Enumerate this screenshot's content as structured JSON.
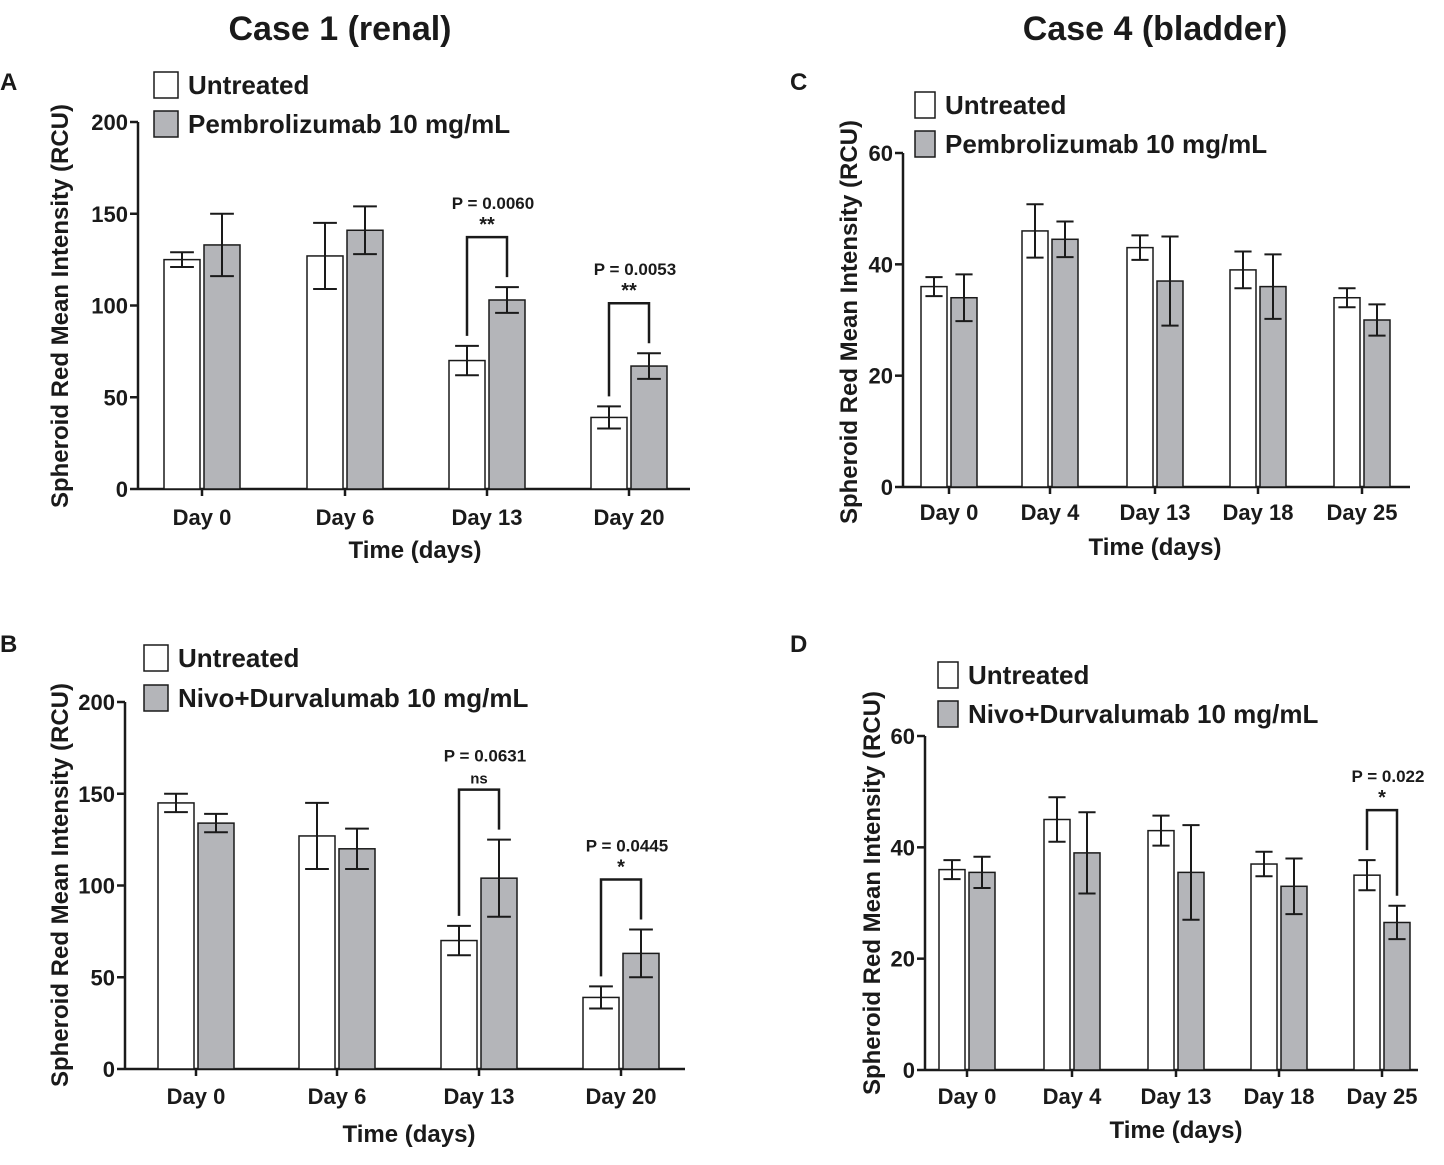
{
  "figure": {
    "title_left": "Case 1 (renal)",
    "title_right": "Case 4 (bladder)"
  },
  "colors": {
    "untreated": "#ffffff",
    "treated": "#b4b5b9",
    "stroke": "#1a1a1a"
  },
  "chart_data": [
    {
      "panel": "A",
      "type": "bar",
      "ylabel": "Spheroid  Red Mean Intensity (RCU)",
      "xlabel": "Time (days)",
      "ylim": [
        0,
        200
      ],
      "yticks": [
        0,
        50,
        100,
        150,
        200
      ],
      "categories": [
        "Day 0",
        "Day 6",
        "Day 13",
        "Day 20"
      ],
      "legend_position": "top-left",
      "series": [
        {
          "name": "Untreated",
          "values": [
            125,
            127,
            70,
            39
          ],
          "errors": [
            4,
            18,
            8,
            6
          ]
        },
        {
          "name": "Pembrolizumab 10 mg/mL",
          "values": [
            133,
            141,
            103,
            67
          ],
          "errors": [
            17,
            13,
            7,
            7
          ]
        }
      ],
      "annotations": [
        {
          "category": 2,
          "p": "P = 0.0060",
          "sig": "**"
        },
        {
          "category": 3,
          "p": "P = 0.0053",
          "sig": "**"
        }
      ]
    },
    {
      "panel": "B",
      "type": "bar",
      "ylabel": "Spheroid  Red Mean Intensity (RCU)",
      "xlabel": "Time (days)",
      "ylim": [
        0,
        200
      ],
      "yticks": [
        0,
        50,
        100,
        150,
        200
      ],
      "categories": [
        "Day 0",
        "Day 6",
        "Day 13",
        "Day 20"
      ],
      "legend_position": "top-left",
      "series": [
        {
          "name": "Untreated",
          "values": [
            145,
            127,
            70,
            39
          ],
          "errors": [
            5,
            18,
            8,
            6
          ]
        },
        {
          "name": "Nivo+Durvalumab 10 mg/mL",
          "values": [
            134,
            120,
            104,
            63
          ],
          "errors": [
            5,
            11,
            21,
            13
          ]
        }
      ],
      "annotations": [
        {
          "category": 2,
          "p": "P = 0.0631",
          "sig": "ns"
        },
        {
          "category": 3,
          "p": "P = 0.0445",
          "sig": "*"
        }
      ]
    },
    {
      "panel": "C",
      "type": "bar",
      "ylabel": "Spheroid  Red Mean Intensity (RCU)",
      "xlabel": "Time (days)",
      "ylim": [
        0,
        60
      ],
      "yticks": [
        0,
        20,
        40,
        60
      ],
      "categories": [
        "Day 0",
        "Day 4",
        "Day 13",
        "Day 18",
        "Day 25"
      ],
      "legend_position": "top-left",
      "series": [
        {
          "name": "Untreated",
          "values": [
            36,
            46,
            43,
            39,
            34
          ],
          "errors": [
            1.7,
            4.8,
            2.2,
            3.3,
            1.7
          ]
        },
        {
          "name": "Pembrolizumab 10 mg/mL",
          "values": [
            34,
            44.5,
            37,
            36,
            30
          ],
          "errors": [
            4.2,
            3.2,
            8,
            5.8,
            2.8
          ]
        }
      ],
      "annotations": []
    },
    {
      "panel": "D",
      "type": "bar",
      "ylabel": "Spheroid  Red Mean Intensity (RCU)",
      "xlabel": "Time (days)",
      "ylim": [
        0,
        60
      ],
      "yticks": [
        0,
        20,
        40,
        60
      ],
      "categories": [
        "Day 0",
        "Day 4",
        "Day 13",
        "Day 18",
        "Day 25"
      ],
      "legend_position": "top-left",
      "series": [
        {
          "name": "Untreated",
          "values": [
            36,
            45,
            43,
            37,
            35
          ],
          "errors": [
            1.7,
            4,
            2.7,
            2.2,
            2.7
          ]
        },
        {
          "name": "Nivo+Durvalumab 10 mg/mL",
          "values": [
            35.5,
            39,
            35.5,
            33,
            26.5
          ],
          "errors": [
            2.8,
            7.3,
            8.5,
            5,
            3
          ]
        }
      ],
      "annotations": [
        {
          "category": 4,
          "p": "P = 0.022",
          "sig": "*"
        }
      ]
    }
  ]
}
